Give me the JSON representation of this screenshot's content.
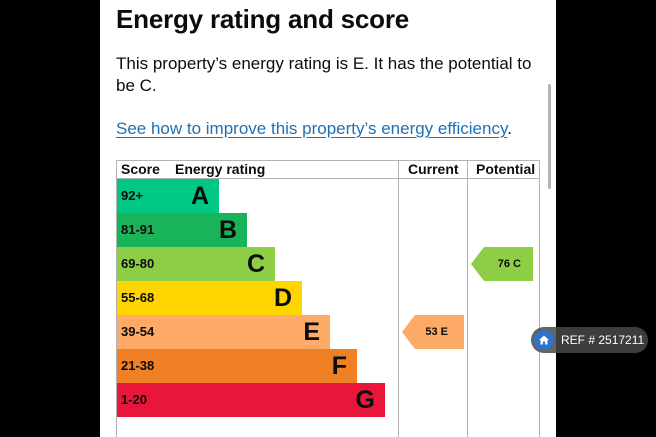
{
  "page": {
    "title": "Energy rating and score",
    "description": "This property’s energy rating is E. It has the potential to be C.",
    "link_text": "See how to improve this property’s energy efficiency",
    "link_suffix": "."
  },
  "table": {
    "headers": {
      "score": "Score",
      "rating": "Energy rating",
      "current": "Current",
      "potential": "Potential"
    },
    "bands": [
      {
        "score": "92+",
        "letter": "A",
        "color": "#008054",
        "band_color": "#00c781"
      },
      {
        "score": "81-91",
        "letter": "B",
        "color": "#19b459",
        "band_color": "#19b459"
      },
      {
        "score": "69-80",
        "letter": "C",
        "color": "#8dce46",
        "band_color": "#8dce46"
      },
      {
        "score": "55-68",
        "letter": "D",
        "color": "#ffd500",
        "band_color": "#ffd500"
      },
      {
        "score": "39-54",
        "letter": "E",
        "color": "#fcaa65",
        "band_color": "#fcaa65"
      },
      {
        "score": "21-38",
        "letter": "F",
        "color": "#ef8023",
        "band_color": "#ef8023"
      },
      {
        "score": "1-20",
        "letter": "G",
        "color": "#e9153b",
        "band_color": "#e9153b"
      }
    ],
    "current": {
      "label": "53  E",
      "band_index": 4,
      "color": "#fcaa65"
    },
    "potential": {
      "label": "76  C",
      "band_index": 2,
      "color": "#8dce46"
    }
  },
  "watermark": {
    "text": "REF # 2517211",
    "icon": "home-icon"
  }
}
